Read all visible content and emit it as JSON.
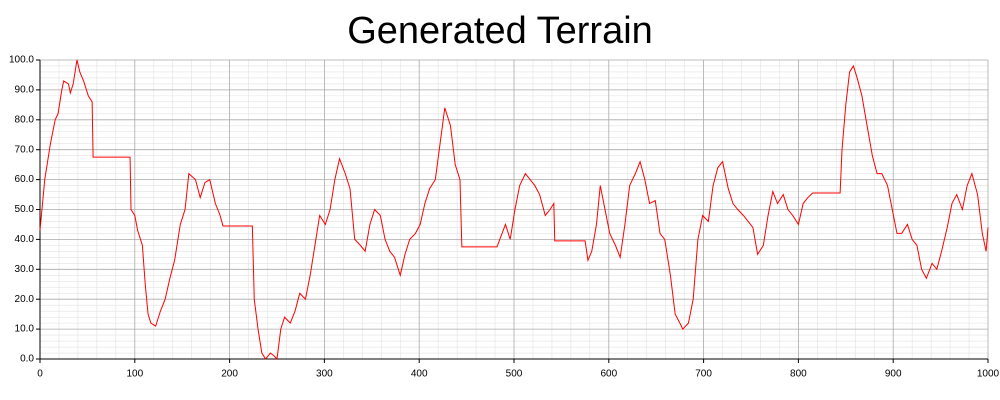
{
  "chart_data": {
    "type": "line",
    "title": "Generated Terrain",
    "x": [
      0,
      5,
      11,
      16,
      19,
      23,
      25,
      30,
      32,
      35,
      39,
      42,
      46,
      51,
      55,
      56,
      95,
      96,
      100,
      103,
      108,
      111,
      114,
      117,
      122,
      127,
      132,
      137,
      142,
      148,
      153,
      157,
      164,
      169,
      174,
      179,
      185,
      190,
      193,
      224,
      226,
      230,
      234,
      238,
      243,
      247,
      250,
      254,
      258,
      264,
      269,
      274,
      280,
      285,
      290,
      295,
      301,
      306,
      311,
      316,
      322,
      327,
      332,
      338,
      343,
      348,
      353,
      359,
      364,
      369,
      374,
      380,
      385,
      390,
      396,
      401,
      406,
      411,
      417,
      422,
      427,
      433,
      438,
      443,
      445,
      482,
      485,
      491,
      496,
      501,
      506,
      512,
      517,
      522,
      527,
      533,
      538,
      542,
      543,
      575,
      578,
      582,
      587,
      591,
      596,
      601,
      607,
      612,
      617,
      622,
      628,
      633,
      638,
      643,
      649,
      654,
      659,
      665,
      670,
      675,
      678,
      684,
      689,
      694,
      699,
      705,
      710,
      715,
      720,
      726,
      731,
      736,
      742,
      747,
      752,
      757,
      763,
      768,
      773,
      778,
      784,
      789,
      794,
      800,
      805,
      810,
      815,
      844,
      846,
      850,
      854,
      858,
      862,
      867,
      873,
      878,
      883,
      888,
      894,
      899,
      904,
      909,
      915,
      920,
      925,
      930,
      935,
      941,
      946,
      951,
      957,
      962,
      967,
      973,
      978,
      983,
      989,
      994,
      998,
      1000
    ],
    "series": [
      {
        "name": "Terrain",
        "color": "#ff0000",
        "values": [
          43,
          60,
          72,
          80,
          82,
          90,
          93,
          92,
          89,
          92,
          100,
          96,
          93,
          88,
          86,
          67.5,
          67.5,
          50,
          48,
          43,
          38,
          25,
          15,
          12,
          11,
          16,
          20,
          27,
          33,
          45,
          50,
          62,
          60,
          54,
          59,
          60,
          52,
          48,
          44.5,
          44.5,
          20,
          10,
          2,
          0,
          2,
          1,
          0,
          10,
          14,
          12,
          16,
          22,
          20,
          28,
          38,
          48,
          45,
          50,
          60,
          67,
          62,
          57,
          40,
          38,
          36,
          45,
          50,
          48,
          40,
          36,
          34,
          28,
          35,
          40,
          42,
          45,
          52,
          57,
          60,
          72,
          84,
          78,
          65,
          60,
          37.5,
          37.5,
          40,
          45,
          40,
          50,
          58,
          62,
          60,
          58,
          55,
          48,
          50,
          52,
          39.5,
          39.5,
          33,
          36,
          45,
          58,
          50,
          42,
          38,
          34,
          45,
          58,
          62,
          66,
          60,
          52,
          53,
          42,
          40,
          28,
          15,
          12,
          10,
          12,
          20,
          40,
          48,
          46,
          58,
          64,
          66,
          57,
          52,
          50,
          48,
          46,
          44,
          35,
          38,
          48,
          56,
          52,
          55,
          50,
          48,
          45,
          52,
          54,
          55.5,
          55.5,
          70,
          85,
          96,
          98,
          94,
          88,
          77,
          68,
          62,
          62,
          58,
          50,
          42,
          42,
          45,
          40,
          38,
          30,
          27,
          32,
          30,
          36,
          44,
          52,
          55,
          50,
          58,
          62,
          55,
          42,
          36,
          44
        ]
      }
    ],
    "xlim": [
      0,
      1000
    ],
    "xticks": [
      0,
      100,
      200,
      300,
      400,
      500,
      600,
      700,
      800,
      900,
      1000
    ],
    "ylim": [
      0,
      100
    ],
    "yticks": [
      {
        "value": 0,
        "label": "0.0"
      },
      {
        "value": 10,
        "label": "10.0"
      },
      {
        "value": 20,
        "label": "20.0"
      },
      {
        "value": 30,
        "label": "30.0"
      },
      {
        "value": 40,
        "label": "40.0"
      },
      {
        "value": 50,
        "label": "50.0"
      },
      {
        "value": 60,
        "label": "60.0"
      },
      {
        "value": 70,
        "label": "70.0"
      },
      {
        "value": 80,
        "label": "80.0"
      },
      {
        "value": 90,
        "label": "90.0"
      },
      {
        "value": 100,
        "label": "100.0"
      }
    ],
    "grid": true,
    "minor_grid": true
  }
}
